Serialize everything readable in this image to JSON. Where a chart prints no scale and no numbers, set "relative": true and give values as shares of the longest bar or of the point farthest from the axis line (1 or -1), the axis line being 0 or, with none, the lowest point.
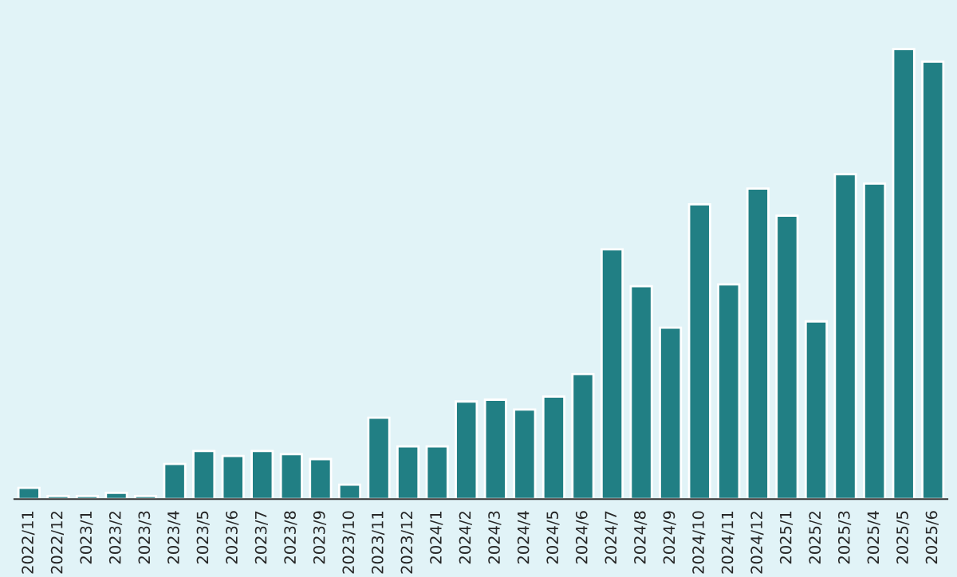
{
  "chart_data": {
    "type": "bar",
    "relative": true,
    "color": "#217f84",
    "categories": [
      "2022/11",
      "2022/12",
      "2023/1",
      "2023/2",
      "2023/3",
      "2023/4",
      "2023/5",
      "2023/6",
      "2023/7",
      "2023/8",
      "2023/9",
      "2023/10",
      "2023/11",
      "2023/12",
      "2024/1",
      "2024/2",
      "2024/3",
      "2024/4",
      "2024/5",
      "2024/6",
      "2024/7",
      "2024/8",
      "2024/9",
      "2024/10",
      "2024/11",
      "2024/12",
      "2025/1",
      "2025/2",
      "2025/3",
      "2025/4",
      "2025/5",
      "2025/6"
    ],
    "values": [
      0.025,
      0.007,
      0.007,
      0.014,
      0.007,
      0.078,
      0.107,
      0.096,
      0.107,
      0.1,
      0.089,
      0.032,
      0.181,
      0.117,
      0.117,
      0.217,
      0.221,
      0.199,
      0.228,
      0.278,
      0.555,
      0.473,
      0.381,
      0.655,
      0.477,
      0.69,
      0.63,
      0.395,
      0.722,
      0.701,
      1,
      0.972
    ]
  }
}
